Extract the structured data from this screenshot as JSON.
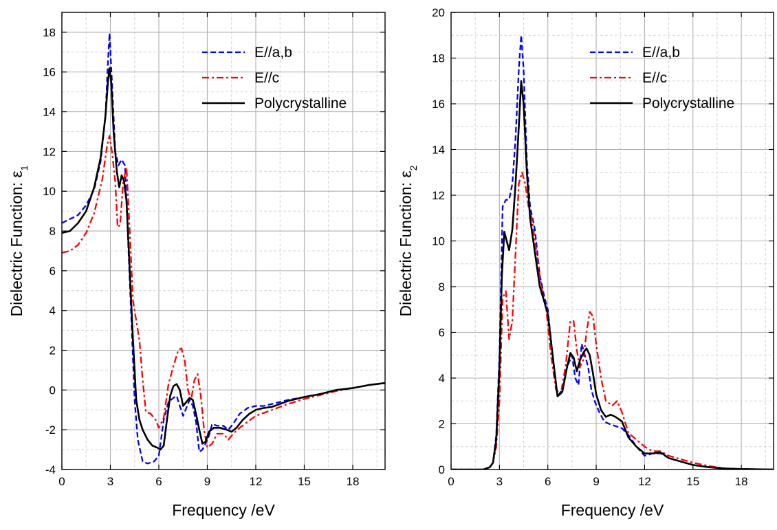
{
  "chart_data": [
    {
      "type": "line",
      "xlabel": "Frequency /eV",
      "ylabel": "Dielectric Function: ε",
      "ylabel_sub": "1",
      "xlim": [
        0,
        20
      ],
      "ylim": [
        -4,
        19
      ],
      "xticks": [
        0,
        3,
        6,
        9,
        12,
        15,
        18
      ],
      "yticks": [
        -4,
        -2,
        0,
        2,
        4,
        6,
        8,
        10,
        12,
        14,
        16,
        18
      ],
      "grid": true,
      "legend_position": "top-right",
      "series": [
        {
          "name": "E//a,b",
          "color": "#0000ff",
          "style": "dashed",
          "x": [
            0,
            1.0,
            1.5,
            2.0,
            2.4,
            2.7,
            2.85,
            2.95,
            3.1,
            3.3,
            3.5,
            3.7,
            3.9,
            4.1,
            4.3,
            4.5,
            4.7,
            5.0,
            5.3,
            5.7,
            6.0,
            6.3,
            6.6,
            6.9,
            7.1,
            7.3,
            7.5,
            7.7,
            7.9,
            8.1,
            8.3,
            8.5,
            8.7,
            8.9,
            9.1,
            9.3,
            9.6,
            10.0,
            10.3,
            10.6,
            11.0,
            11.5,
            12.0,
            12.5,
            13.0,
            13.5,
            14.0,
            15.0,
            16.0,
            17.0,
            18.0,
            19.0,
            20.0
          ],
          "y": [
            8.4,
            8.8,
            9.3,
            10.1,
            11.5,
            13.8,
            16.5,
            17.95,
            15.5,
            12.0,
            11.3,
            11.6,
            11.3,
            7.5,
            3.5,
            -0.5,
            -2.5,
            -3.6,
            -3.7,
            -3.6,
            -3.3,
            -1.5,
            -0.6,
            -0.4,
            -0.3,
            -0.8,
            -1.3,
            -0.9,
            -0.5,
            -0.8,
            -1.6,
            -3.1,
            -3.0,
            -2.7,
            -2.3,
            -1.7,
            -1.8,
            -1.8,
            -2.0,
            -1.7,
            -1.2,
            -0.9,
            -0.8,
            -0.8,
            -0.7,
            -0.6,
            -0.5,
            -0.35,
            -0.2,
            0.0,
            0.1,
            0.25,
            0.35
          ]
        },
        {
          "name": "E//c",
          "color": "#ff0000",
          "style": "dashdot",
          "x": [
            0,
            0.5,
            1.0,
            1.5,
            2.0,
            2.5,
            2.8,
            2.95,
            3.1,
            3.3,
            3.45,
            3.6,
            3.8,
            4.0,
            4.2,
            4.4,
            4.6,
            4.8,
            5.0,
            5.2,
            5.5,
            5.8,
            6.0,
            6.3,
            6.6,
            6.9,
            7.2,
            7.4,
            7.6,
            7.8,
            8.0,
            8.2,
            8.4,
            8.6,
            8.8,
            9.0,
            9.3,
            9.6,
            10.0,
            10.3,
            10.6,
            11.0,
            11.5,
            12.0,
            13.0,
            14.0,
            15.0,
            16.0,
            17.0,
            18.0,
            19.0,
            20.0
          ],
          "y": [
            6.9,
            7.0,
            7.3,
            7.9,
            8.9,
            10.6,
            12.3,
            12.8,
            12.0,
            10.5,
            8.2,
            8.3,
            10.5,
            11.2,
            8.0,
            4.5,
            3.5,
            2.5,
            0.5,
            -1.1,
            -1.2,
            -1.5,
            -1.9,
            -1.4,
            0.3,
            1.2,
            2.0,
            2.1,
            1.5,
            0.0,
            -0.5,
            0.5,
            0.8,
            -0.3,
            -2.0,
            -2.9,
            -2.7,
            -2.2,
            -2.2,
            -2.5,
            -2.2,
            -1.9,
            -1.6,
            -1.3,
            -1.0,
            -0.7,
            -0.45,
            -0.25,
            -0.05,
            0.1,
            0.25,
            0.35
          ]
        },
        {
          "name": "Polycrystalline",
          "color": "#000000",
          "style": "solid",
          "x": [
            0,
            0.5,
            1.0,
            1.5,
            2.0,
            2.4,
            2.7,
            2.85,
            2.95,
            3.05,
            3.2,
            3.4,
            3.55,
            3.7,
            3.85,
            4.0,
            4.2,
            4.4,
            4.6,
            4.8,
            5.0,
            5.3,
            5.6,
            5.9,
            6.1,
            6.3,
            6.5,
            6.7,
            6.9,
            7.1,
            7.3,
            7.5,
            7.7,
            7.9,
            8.1,
            8.3,
            8.5,
            8.7,
            8.9,
            9.1,
            9.4,
            9.8,
            10.2,
            10.5,
            10.8,
            11.2,
            11.6,
            12.0,
            12.5,
            13.0,
            13.5,
            14.0,
            15.0,
            16.0,
            17.0,
            18.0,
            19.0,
            20.0
          ],
          "y": [
            7.9,
            8.0,
            8.4,
            9.0,
            10.2,
            11.7,
            13.8,
            15.5,
            16.2,
            15.5,
            13.0,
            11.0,
            10.2,
            10.8,
            10.5,
            9.5,
            6.0,
            2.5,
            -0.5,
            -1.5,
            -2.0,
            -2.5,
            -2.8,
            -2.9,
            -3.0,
            -2.8,
            -1.5,
            -0.3,
            0.2,
            0.3,
            0.0,
            -0.8,
            -0.6,
            -0.4,
            -0.5,
            -1.2,
            -2.0,
            -2.7,
            -2.6,
            -2.1,
            -1.9,
            -1.9,
            -2.0,
            -2.1,
            -1.9,
            -1.5,
            -1.2,
            -1.0,
            -0.9,
            -0.85,
            -0.7,
            -0.55,
            -0.35,
            -0.2,
            0.0,
            0.1,
            0.25,
            0.35
          ]
        }
      ]
    },
    {
      "type": "line",
      "xlabel": "Frequency /eV",
      "ylabel": "Dielectric Function: ε",
      "ylabel_sub": "2",
      "xlim": [
        0,
        20
      ],
      "ylim": [
        0,
        20
      ],
      "xticks": [
        0,
        3,
        6,
        9,
        12,
        15,
        18
      ],
      "yticks": [
        0,
        2,
        4,
        6,
        8,
        10,
        12,
        14,
        16,
        18,
        20
      ],
      "grid": true,
      "legend_position": "top-right",
      "series": [
        {
          "name": "E//a,b",
          "color": "#0000ff",
          "style": "dashed",
          "x": [
            0,
            1.5,
            2.0,
            2.4,
            2.6,
            2.8,
            3.0,
            3.2,
            3.4,
            3.6,
            3.8,
            4.0,
            4.2,
            4.35,
            4.5,
            4.7,
            4.9,
            5.2,
            5.5,
            5.8,
            6.0,
            6.3,
            6.6,
            6.9,
            7.2,
            7.5,
            7.7,
            7.9,
            8.1,
            8.3,
            8.5,
            8.7,
            8.9,
            9.2,
            9.5,
            9.8,
            10.2,
            10.6,
            11.0,
            11.5,
            12.0,
            12.5,
            13.0,
            13.5,
            14.0,
            15.0,
            16.0,
            17.0,
            18.0,
            19.0,
            20.0
          ],
          "y": [
            0,
            0,
            0,
            0.1,
            0.3,
            1.5,
            5.0,
            11.5,
            11.8,
            11.8,
            12.5,
            14.5,
            17.5,
            19.0,
            17.5,
            13.5,
            11.5,
            10.5,
            8.5,
            7.5,
            7.0,
            5.0,
            3.2,
            3.5,
            4.5,
            5.0,
            4.0,
            3.7,
            5.5,
            5.0,
            4.5,
            3.5,
            3.0,
            2.5,
            2.1,
            2.0,
            1.9,
            1.8,
            1.5,
            1.0,
            0.6,
            0.7,
            0.7,
            0.5,
            0.4,
            0.2,
            0.1,
            0.05,
            0.02,
            0.01,
            0.0
          ]
        },
        {
          "name": "E//c",
          "color": "#ff0000",
          "style": "dashdot",
          "x": [
            0,
            1.5,
            2.0,
            2.4,
            2.6,
            2.8,
            3.0,
            3.2,
            3.4,
            3.6,
            3.8,
            4.0,
            4.2,
            4.4,
            4.6,
            4.8,
            5.0,
            5.3,
            5.6,
            5.9,
            6.2,
            6.5,
            6.8,
            7.1,
            7.4,
            7.6,
            7.8,
            8.0,
            8.2,
            8.4,
            8.6,
            8.8,
            9.0,
            9.3,
            9.6,
            10.0,
            10.3,
            10.6,
            11.0,
            11.5,
            12.0,
            12.5,
            13.0,
            13.5,
            14.0,
            15.0,
            16.0,
            17.0,
            18.0,
            19.0,
            20.0
          ],
          "y": [
            0,
            0,
            0,
            0.1,
            0.3,
            1.0,
            3.0,
            7.5,
            7.8,
            5.7,
            6.5,
            9.5,
            12.5,
            13.0,
            12.5,
            11.5,
            11.0,
            9.5,
            8.0,
            7.0,
            5.0,
            3.5,
            3.3,
            4.5,
            6.5,
            6.5,
            5.2,
            4.5,
            4.8,
            6.0,
            6.9,
            6.7,
            5.5,
            4.0,
            3.0,
            2.8,
            3.0,
            2.5,
            1.6,
            1.3,
            1.0,
            0.8,
            0.8,
            0.6,
            0.5,
            0.3,
            0.15,
            0.05,
            0.02,
            0.01,
            0.0
          ]
        },
        {
          "name": "Polycrystalline",
          "color": "#000000",
          "style": "solid",
          "x": [
            0,
            1.5,
            2.0,
            2.4,
            2.6,
            2.8,
            3.0,
            3.15,
            3.3,
            3.45,
            3.6,
            3.8,
            4.0,
            4.2,
            4.35,
            4.5,
            4.7,
            4.9,
            5.2,
            5.5,
            5.8,
            6.0,
            6.3,
            6.6,
            6.9,
            7.2,
            7.4,
            7.6,
            7.8,
            8.0,
            8.2,
            8.4,
            8.6,
            8.8,
            9.0,
            9.3,
            9.6,
            9.9,
            10.2,
            10.6,
            11.0,
            11.5,
            12.0,
            12.5,
            13.0,
            13.5,
            14.0,
            15.0,
            16.0,
            17.0,
            18.0,
            19.0,
            20.0
          ],
          "y": [
            0,
            0,
            0,
            0.1,
            0.3,
            1.3,
            4.5,
            8.5,
            10.4,
            10.0,
            9.6,
            10.5,
            12.5,
            15.0,
            17.0,
            16.0,
            13.0,
            11.0,
            9.5,
            8.0,
            7.3,
            6.8,
            5.0,
            3.2,
            3.4,
            4.5,
            5.1,
            4.9,
            4.3,
            4.8,
            5.1,
            5.3,
            5.0,
            4.2,
            3.3,
            2.6,
            2.3,
            2.4,
            2.3,
            2.1,
            1.4,
            1.0,
            0.7,
            0.7,
            0.75,
            0.5,
            0.4,
            0.2,
            0.1,
            0.04,
            0.02,
            0.01,
            0.0
          ]
        }
      ]
    }
  ]
}
